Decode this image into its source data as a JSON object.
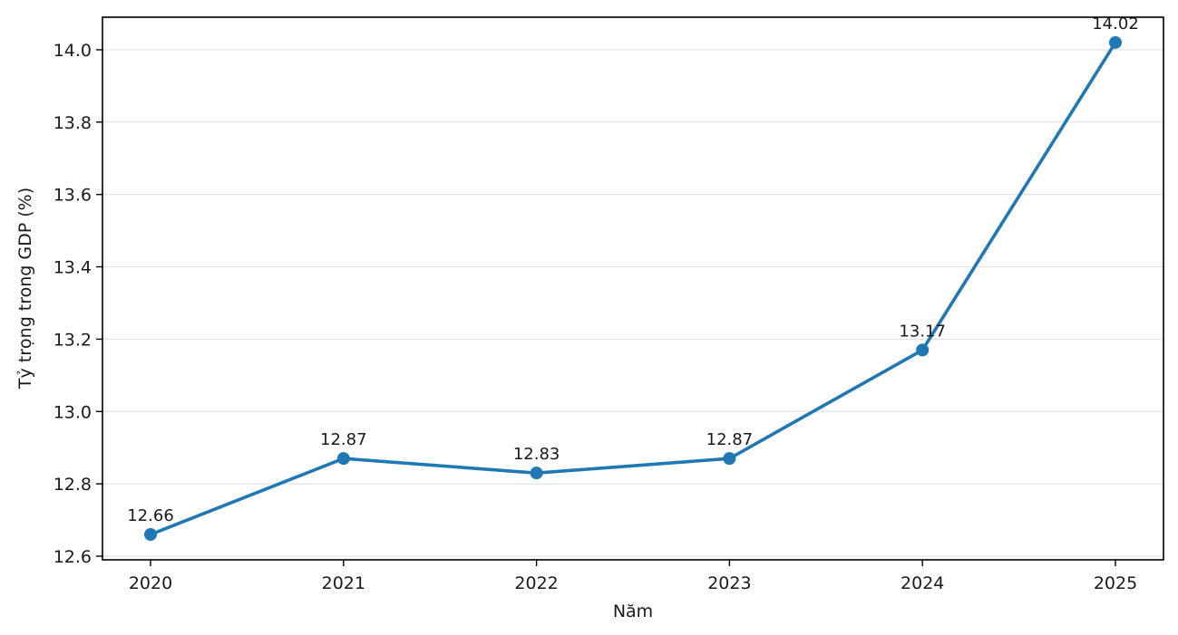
{
  "chart_data": {
    "type": "line",
    "title": "",
    "xlabel": "Năm",
    "ylabel": "Tỷ trọng trong GDP (%)",
    "x": [
      "2020",
      "2021",
      "2022",
      "2023",
      "2024",
      "2025"
    ],
    "series": [
      {
        "values": [
          12.66,
          12.87,
          12.83,
          12.87,
          13.17,
          14.02
        ],
        "labels": [
          "12.66",
          "12.87",
          "12.83",
          "12.87",
          "13.17",
          "14.02"
        ],
        "color": "#1f77b4",
        "marker": "circle"
      }
    ],
    "ylim": [
      12.59,
      14.09
    ],
    "yticks": [
      12.6,
      12.8,
      13.0,
      13.2,
      13.4,
      13.6,
      13.8,
      14.0
    ],
    "ytick_labels": [
      "12.6",
      "12.8",
      "13.0",
      "13.2",
      "13.4",
      "13.6",
      "13.8",
      "14.0"
    ],
    "grid": "horizontal",
    "legend": "none"
  }
}
